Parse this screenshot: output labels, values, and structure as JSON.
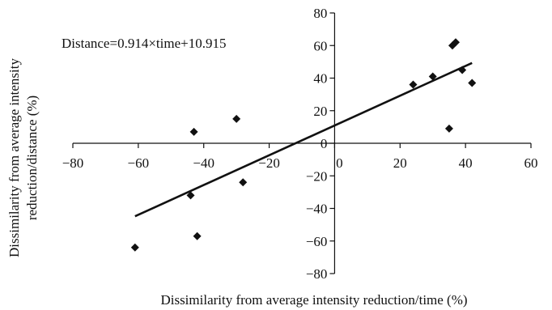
{
  "chart_data": {
    "type": "scatter",
    "xlabel": "Dissimilarity from average intensity reduction/time (%)",
    "ylabel_lines": [
      "Dissimilarity from average intensity",
      "reduction/distance (%)"
    ],
    "annotation": "Distance=0.914×time+10.915",
    "xlim": [
      -80,
      60
    ],
    "ylim": [
      -80,
      80
    ],
    "x_ticks": [
      -80,
      -60,
      -40,
      -20,
      0,
      20,
      40,
      60
    ],
    "x_tick_labels": [
      "−80",
      "−60",
      "−40",
      "−20",
      "0",
      "20",
      "40",
      "60"
    ],
    "y_ticks": [
      -80,
      -60,
      -40,
      -20,
      0,
      20,
      40,
      60,
      80
    ],
    "y_tick_labels": [
      "−80",
      "−60",
      "−40",
      "−20",
      "0",
      "20",
      "40",
      "60",
      "80"
    ],
    "grid": false,
    "legend": "none",
    "marker": "diamond",
    "marker_color": "#111111",
    "points": [
      {
        "x": -61,
        "y": -64
      },
      {
        "x": -44,
        "y": -32
      },
      {
        "x": -43,
        "y": 7
      },
      {
        "x": -42,
        "y": -57
      },
      {
        "x": -30,
        "y": 15
      },
      {
        "x": -28,
        "y": -24
      },
      {
        "x": 24,
        "y": 36
      },
      {
        "x": 30,
        "y": 41
      },
      {
        "x": 35,
        "y": 9
      },
      {
        "x": 36,
        "y": 60
      },
      {
        "x": 37,
        "y": 62
      },
      {
        "x": 39,
        "y": 45
      },
      {
        "x": 42,
        "y": 37
      }
    ],
    "trendline": {
      "slope": 0.914,
      "intercept": 10.915,
      "x_range": [
        -61,
        42
      ]
    }
  }
}
